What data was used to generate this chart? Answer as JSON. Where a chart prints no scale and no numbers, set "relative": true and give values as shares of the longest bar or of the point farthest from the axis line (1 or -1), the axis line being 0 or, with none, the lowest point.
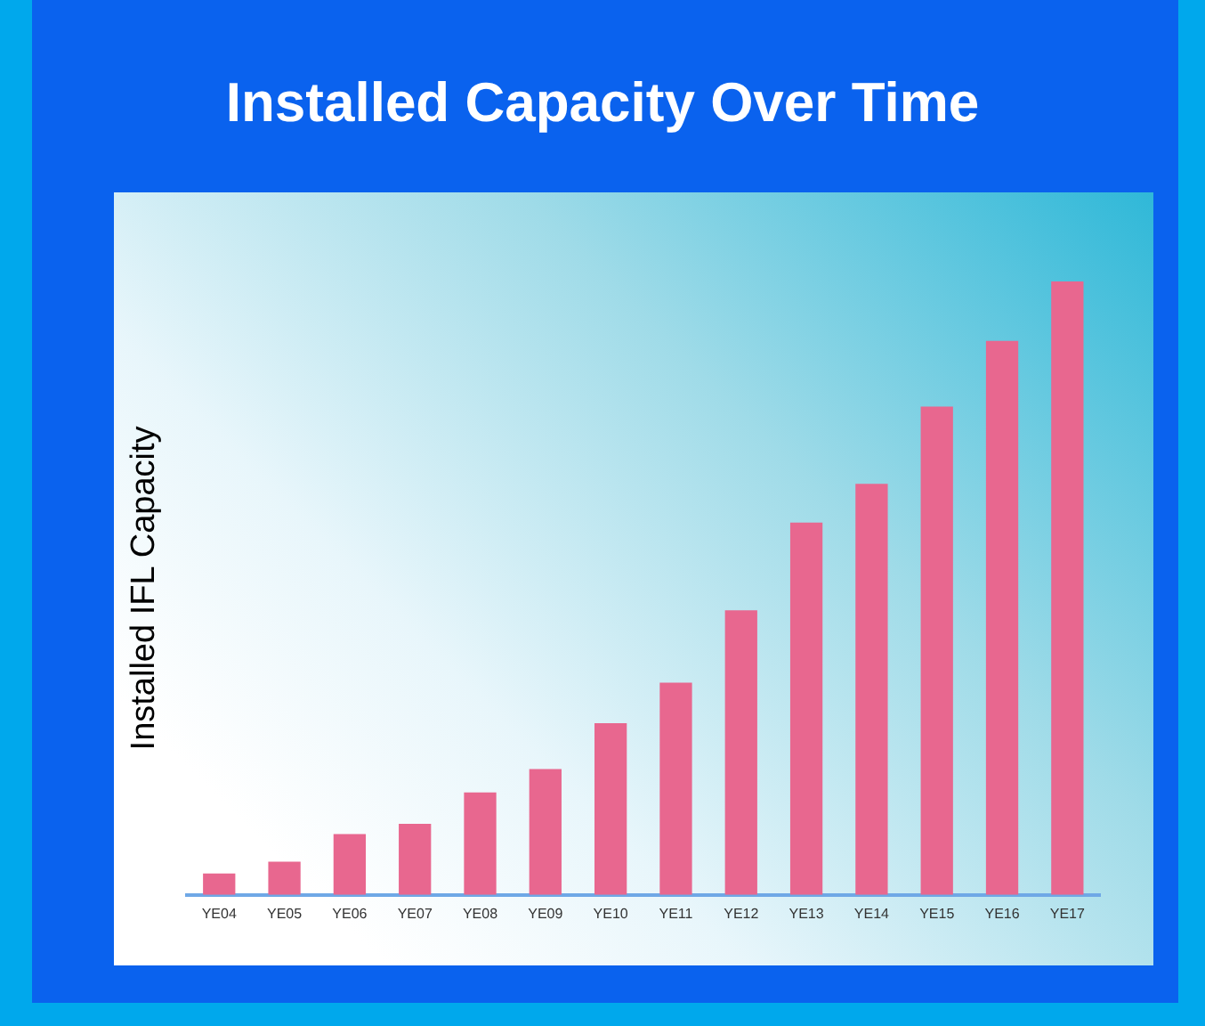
{
  "chart_data": {
    "type": "bar",
    "title": "Installed Capacity Over Time",
    "ylabel": "Installed IFL Capacity",
    "categories": [
      "YE04",
      "YE05",
      "YE06",
      "YE07",
      "YE08",
      "YE09",
      "YE10",
      "YE11",
      "YE12",
      "YE13",
      "YE14",
      "YE15",
      "YE16",
      "YE17"
    ],
    "values": [
      0.035,
      0.054,
      0.099,
      0.116,
      0.167,
      0.205,
      0.28,
      0.346,
      0.464,
      0.607,
      0.67,
      0.796,
      0.903,
      1
    ],
    "color": "#e8678f",
    "relative": true,
    "grid": false,
    "legend": false
  }
}
